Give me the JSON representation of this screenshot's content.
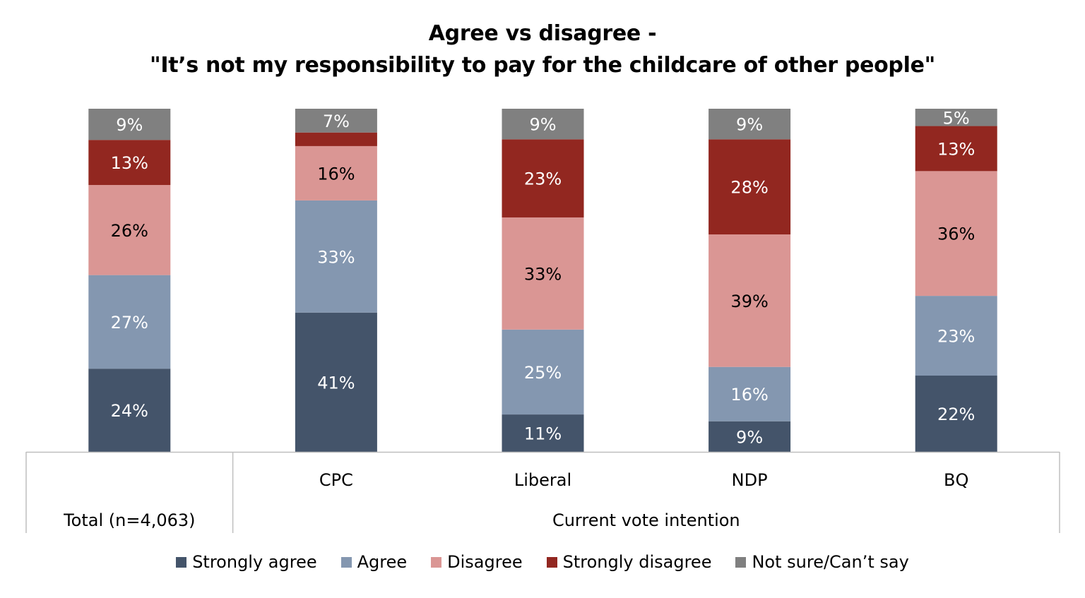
{
  "title": {
    "line1": "Agree vs disagree -",
    "line2": "\"It’s not my responsibility to pay for the childcare of other people\""
  },
  "chart_data": {
    "type": "bar",
    "stacked": true,
    "title": "Agree vs disagree - \"It’s not my responsibility to pay for the childcare of other people\"",
    "categories": [
      "Total (n=4,063)",
      "CPC",
      "Liberal",
      "NDP",
      "BQ"
    ],
    "group_labels": [
      {
        "label": "",
        "members": [
          "Total (n=4,063)"
        ]
      },
      {
        "label": "Current vote intention",
        "members": [
          "CPC",
          "Liberal",
          "NDP",
          "BQ"
        ]
      }
    ],
    "series": [
      {
        "name": "Strongly agree",
        "color": "#44546a",
        "label_color": "#ffffff",
        "values": [
          24,
          41,
          11,
          9,
          22
        ]
      },
      {
        "name": "Agree",
        "color": "#8497b0",
        "label_color": "#ffffff",
        "values": [
          27,
          33,
          25,
          16,
          23
        ]
      },
      {
        "name": "Disagree",
        "color": "#da9694",
        "label_color": "#000000",
        "values": [
          26,
          16,
          33,
          39,
          36
        ]
      },
      {
        "name": "Strongly disagree",
        "color": "#922720",
        "label_color": "#ffffff",
        "values": [
          13,
          4,
          23,
          28,
          13
        ]
      },
      {
        "name": "Not sure/Can’t say",
        "color": "#808080",
        "label_color": "#ffffff",
        "values": [
          9,
          7,
          9,
          9,
          5
        ]
      }
    ],
    "data_labels": [
      [
        "24%",
        "41%",
        "11%",
        "9%",
        "22%"
      ],
      [
        "27%",
        "33%",
        "25%",
        "16%",
        "23%"
      ],
      [
        "26%",
        "16%",
        "33%",
        "39%",
        "36%"
      ],
      [
        "13%",
        "",
        "23%",
        "28%",
        "13%"
      ],
      [
        "9%",
        "7%",
        "9%",
        "9%",
        "5%"
      ]
    ],
    "legend_position": "bottom",
    "grid": false,
    "y_axis_visible": false
  }
}
